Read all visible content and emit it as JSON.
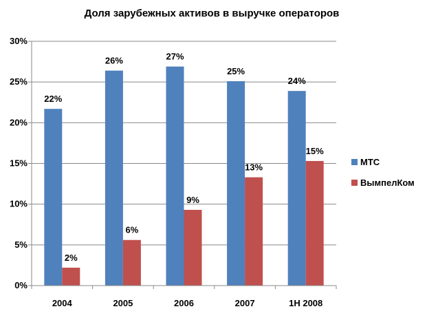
{
  "chart_data": {
    "type": "bar",
    "title": "Доля зарубежных активов в выручке операторов",
    "xlabel": "",
    "ylabel": "",
    "categories": [
      "2004",
      "2005",
      "2006",
      "2007",
      "1H 2008"
    ],
    "series": [
      {
        "name": "МТС",
        "values": [
          21.7,
          26.4,
          26.9,
          25.1,
          23.9
        ],
        "labels": [
          "22%",
          "26%",
          "27%",
          "25%",
          "24%"
        ],
        "color": "#4F81BD"
      },
      {
        "name": "ВымпелКом",
        "values": [
          2.2,
          5.6,
          9.3,
          13.3,
          15.3
        ],
        "labels": [
          "2%",
          "6%",
          "9%",
          "13%",
          "15%"
        ],
        "color": "#C0504D"
      }
    ],
    "ylim": [
      0,
      30
    ],
    "yticks": [
      0,
      5,
      10,
      15,
      20,
      25,
      30
    ],
    "ytick_labels": [
      "0%",
      "5%",
      "10%",
      "15%",
      "20%",
      "25%",
      "30%"
    ],
    "grid": true,
    "legend_position": "right"
  }
}
